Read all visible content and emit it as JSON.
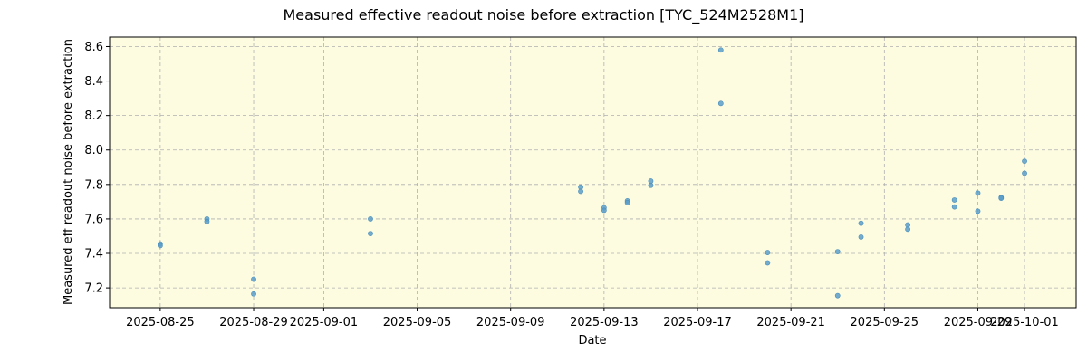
{
  "chart_data": {
    "type": "scatter",
    "title": "Measured effective readout noise before extraction [TYC_524M2528M1]",
    "xlabel": "Date",
    "ylabel": "Measured eff readout noise before extraction",
    "xlim": [
      "2025-08-22T20:00",
      "2025-10-03T05:00"
    ],
    "ylim": [
      7.085,
      8.655
    ],
    "x_ticks": [
      "2025-08-25",
      "2025-08-29",
      "2025-09-01",
      "2025-09-05",
      "2025-09-09",
      "2025-09-13",
      "2025-09-17",
      "2025-09-21",
      "2025-09-25",
      "2025-09-29",
      "2025-10-01"
    ],
    "y_ticks": [
      7.2,
      7.4,
      7.6,
      7.8,
      8.0,
      8.2,
      8.4,
      8.6
    ],
    "grid": true,
    "background": "#fdfce0",
    "point_color": "#5b9ec9",
    "points": [
      {
        "x": "2025-08-25T00:00",
        "y": 7.455
      },
      {
        "x": "2025-08-25T00:00",
        "y": 7.445
      },
      {
        "x": "2025-08-27T00:00",
        "y": 7.6
      },
      {
        "x": "2025-08-27T00:00",
        "y": 7.585
      },
      {
        "x": "2025-08-29T00:00",
        "y": 7.25
      },
      {
        "x": "2025-08-29T00:00",
        "y": 7.165
      },
      {
        "x": "2025-09-03T00:00",
        "y": 7.6
      },
      {
        "x": "2025-09-03T00:00",
        "y": 7.515
      },
      {
        "x": "2025-09-12T00:00",
        "y": 7.785
      },
      {
        "x": "2025-09-12T00:00",
        "y": 7.76
      },
      {
        "x": "2025-09-13T00:00",
        "y": 7.665
      },
      {
        "x": "2025-09-13T00:00",
        "y": 7.65
      },
      {
        "x": "2025-09-14T00:00",
        "y": 7.705
      },
      {
        "x": "2025-09-14T00:00",
        "y": 7.695
      },
      {
        "x": "2025-09-15T00:00",
        "y": 7.82
      },
      {
        "x": "2025-09-15T00:00",
        "y": 7.795
      },
      {
        "x": "2025-09-18T00:00",
        "y": 8.58
      },
      {
        "x": "2025-09-18T00:00",
        "y": 8.27
      },
      {
        "x": "2025-09-20T00:00",
        "y": 7.405
      },
      {
        "x": "2025-09-20T00:00",
        "y": 7.345
      },
      {
        "x": "2025-09-23T00:00",
        "y": 7.41
      },
      {
        "x": "2025-09-23T00:00",
        "y": 7.155
      },
      {
        "x": "2025-09-24T00:00",
        "y": 7.575
      },
      {
        "x": "2025-09-24T00:00",
        "y": 7.495
      },
      {
        "x": "2025-09-26T00:00",
        "y": 7.565
      },
      {
        "x": "2025-09-26T00:00",
        "y": 7.54
      },
      {
        "x": "2025-09-28T00:00",
        "y": 7.71
      },
      {
        "x": "2025-09-28T00:00",
        "y": 7.67
      },
      {
        "x": "2025-09-29T00:00",
        "y": 7.75
      },
      {
        "x": "2025-09-29T00:00",
        "y": 7.645
      },
      {
        "x": "2025-09-30T00:00",
        "y": 7.725
      },
      {
        "x": "2025-09-30T00:00",
        "y": 7.72
      },
      {
        "x": "2025-10-01T00:00",
        "y": 7.935
      },
      {
        "x": "2025-10-01T00:00",
        "y": 7.865
      }
    ]
  }
}
